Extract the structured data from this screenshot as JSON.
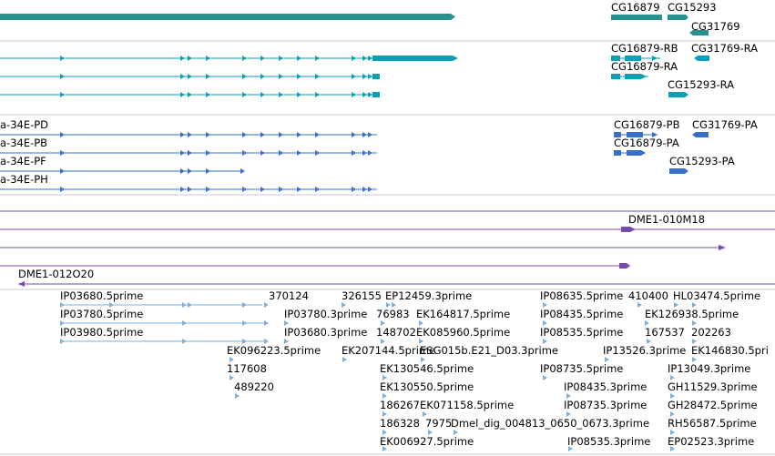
{
  "colors": {
    "genes": "#2a8f8f",
    "transcripts": "#0aa0b5",
    "protein_features": "#3a6fc8",
    "contigs": "#7a4aa8",
    "ests": "#7db0dc",
    "separator": "#c8c8c8",
    "background": "#ffffff"
  },
  "tracks": [
    {
      "name": "genes",
      "labels": [
        "CG16879",
        "CG15293",
        "CG31769"
      ]
    },
    {
      "name": "transcripts",
      "labels": [
        "CG16879-RB",
        "CG31769-RA",
        "CG16879-RA",
        "CG15293-RA"
      ]
    },
    {
      "name": "protein_features",
      "labels": [
        "a-34E-PD",
        "a-34E-PB",
        "a-34E-PF",
        "a-34E-PH",
        "CG16879-PB",
        "CG31769-PA",
        "CG16879-PA",
        "CG15293-PA"
      ]
    },
    {
      "name": "contigs",
      "labels": [
        "DME1-010M18",
        "DME1-012O20"
      ]
    },
    {
      "name": "ests",
      "labels": [
        "IP03680.5prime",
        "370124",
        "326155",
        "EP12459.3prime",
        "IP08635.5prime",
        "410400",
        "HL03474.5prime",
        "IP03780.5prime",
        "IP03780.3prime",
        "76983",
        "EK164817.5prime",
        "IP08435.5prime",
        "EK126938.5prime",
        "IP03980.5prime",
        "IP03680.3prime",
        "148702",
        "EK085960.5prime",
        "IP08535.5prime",
        "167537",
        "202263",
        "EK096223.5prime",
        "EK207144.5prime",
        "ESG015b.E21_D03.3prime",
        "IP13526.3prime",
        "EK146830.5pri",
        "117608",
        "EK130546.5prime",
        "IP08735.5prime",
        "IP13049.3prime",
        "489220",
        "EK130550.5prime",
        "IP08435.3prime",
        "GH11529.3prime",
        "186267",
        "EK071158.5prime",
        "IP08735.3prime",
        "GH28472.5prime",
        "186328",
        "7975",
        "Dmel_dig_004813_0650_0673.3prime",
        "RH56587.5prime",
        "EK006927.5prime",
        "IP08535.3prime",
        "EP02523.3prime"
      ]
    }
  ]
}
